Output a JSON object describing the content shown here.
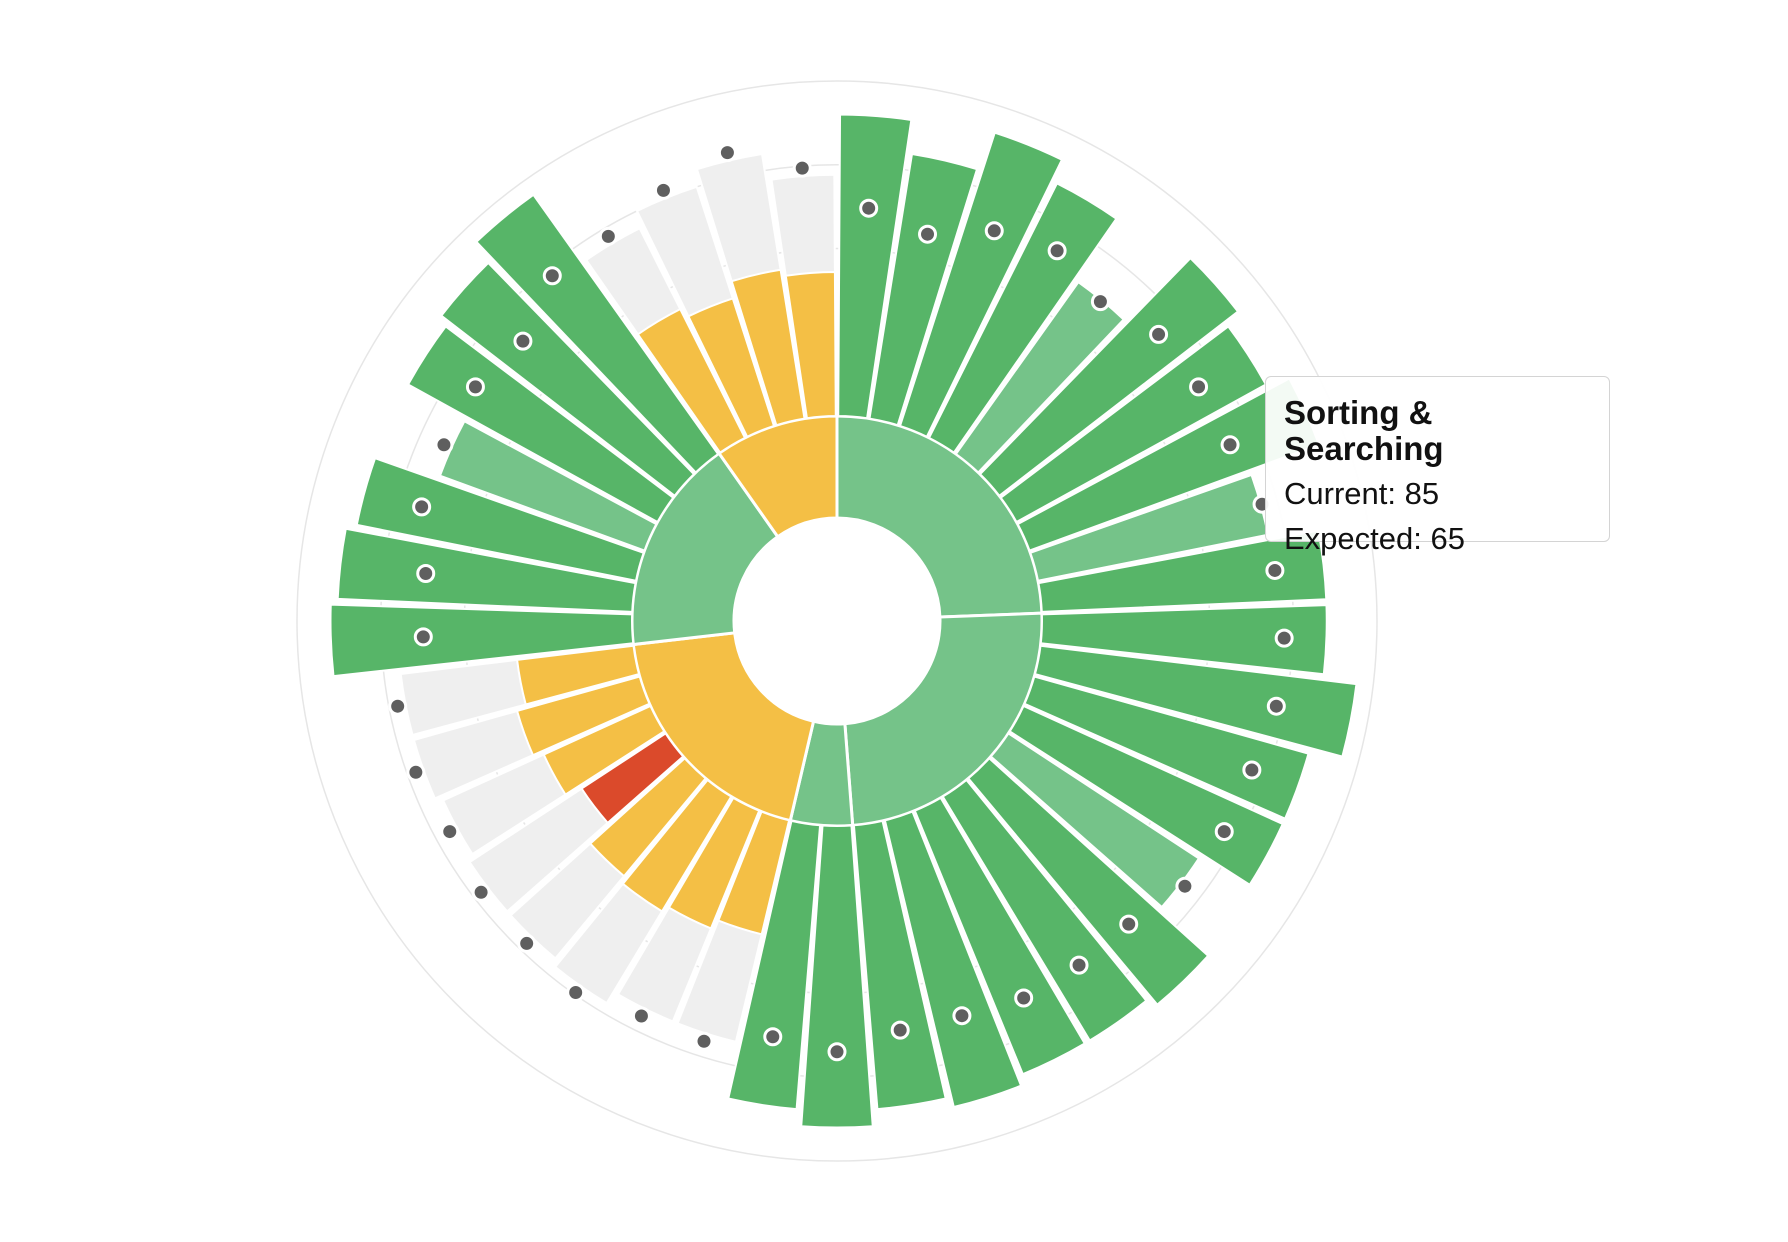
{
  "chart_data": {
    "type": "radial-bar",
    "domain": [
      0,
      100
    ],
    "grid": true,
    "colors": {
      "above": "#57b568",
      "above_light": "#75c389",
      "near": "#f4bf45",
      "below": "#db4a2b",
      "track": "#efefef",
      "marker": "#5f5f5f",
      "grid": "#e6e6e6"
    },
    "sections": [
      {
        "group": "green",
        "items": [
          {
            "current": 90,
            "expected": 60
          },
          {
            "current": 80,
            "expected": 55
          },
          {
            "current": 92,
            "expected": 62
          },
          {
            "current": 85,
            "expected": 65
          },
          {
            "current": 63,
            "expected": 60
          },
          {
            "current": 90,
            "expected": 65
          },
          {
            "current": 85,
            "expected": 65
          },
          {
            "current": 92,
            "expected": 65
          },
          {
            "current": 70,
            "expected": 68
          },
          {
            "current": 85,
            "expected": 68
          }
        ]
      },
      {
        "group": "green",
        "items": [
          {
            "current": 85,
            "expected": 70
          },
          {
            "current": 95,
            "expected": 70
          },
          {
            "current": 85,
            "expected": 68
          },
          {
            "current": 85,
            "expected": 68
          },
          {
            "current": 68,
            "expected": 67
          },
          {
            "current": 88,
            "expected": 62
          },
          {
            "current": 85,
            "expected": 62
          },
          {
            "current": 85,
            "expected": 62
          },
          {
            "current": 88,
            "expected": 60
          },
          {
            "current": 85,
            "expected": 60
          }
        ]
      },
      {
        "group": "green",
        "items": [
          {
            "current": 90,
            "expected": 65
          },
          {
            "current": 85,
            "expected": 62
          }
        ]
      },
      {
        "group": "yellow",
        "items": [
          {
            "current": 35,
            "expected": 68
          },
          {
            "current": 38,
            "expected": 68
          },
          {
            "current": 40,
            "expected": 72
          },
          {
            "current": 38,
            "expected": 70
          },
          {
            "current": 30,
            "expected": 70
          },
          {
            "current": 35,
            "expected": 68
          },
          {
            "current": 38,
            "expected": 70
          },
          {
            "current": 35,
            "expected": 70
          }
        ]
      },
      {
        "group": "green",
        "items": [
          {
            "current": 90,
            "expected": 60
          },
          {
            "current": 88,
            "expected": 60
          },
          {
            "current": 85,
            "expected": 65
          },
          {
            "current": 65,
            "expected": 65
          },
          {
            "current": 85,
            "expected": 65
          },
          {
            "current": 88,
            "expected": 62
          },
          {
            "current": 95,
            "expected": 70
          }
        ]
      },
      {
        "group": "yellow",
        "items": [
          {
            "current": 43,
            "expected": 70
          },
          {
            "current": 40,
            "expected": 75
          },
          {
            "current": 45,
            "expected": 80
          },
          {
            "current": 43,
            "expected": 72
          }
        ]
      }
    ],
    "tooltip": {
      "title": "Sorting & Searching",
      "current_label": "Current: 85",
      "expected_label": "Expected: 65"
    }
  }
}
